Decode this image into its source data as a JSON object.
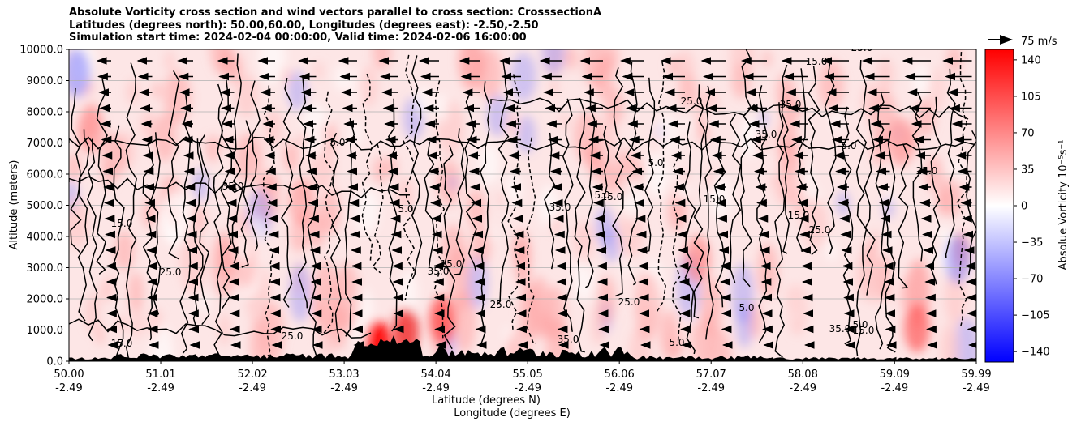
{
  "title_lines": [
    "Absolute Vorticity cross section and wind vectors parallel to cross section: CrosssectionA",
    "Latitudes (degrees north): 50.00,60.00, Longitudes (degrees east): -2.50,-2.50",
    "Simulation start time: 2024-02-04 00:00:00, Valid time: 2024-02-06 16:00:00"
  ],
  "chart_data": {
    "type": "heatmap",
    "xlabel_1": "Latitude (degrees N)",
    "xlabel_2": "Longitude (degrees E)",
    "ylabel": "Altitude (meters)",
    "x_ticks_lat": [
      "50.00",
      "51.01",
      "52.02",
      "53.03",
      "54.04",
      "55.05",
      "56.06",
      "57.07",
      "58.08",
      "59.09",
      "59.99"
    ],
    "x_ticks_lon": [
      "-2.49",
      "-2.49",
      "-2.49",
      "-2.49",
      "-2.49",
      "-2.49",
      "-2.49",
      "-2.49",
      "-2.49",
      "-2.49",
      "-2.49"
    ],
    "y_ticks": [
      "0.0",
      "1000.0",
      "2000.0",
      "3000.0",
      "4000.0",
      "5000.0",
      "6000.0",
      "7000.0",
      "8000.0",
      "9000.0",
      "10000.0"
    ],
    "ylim": [
      0,
      10000
    ],
    "xlim": [
      50.0,
      59.99
    ],
    "grid": "horizontal",
    "colorbar": {
      "label": "Absolue Vorticity 10⁻⁵s⁻¹",
      "ticks": [
        "140",
        "105",
        "70",
        "35",
        "0",
        "−35",
        "−70",
        "−105",
        "−140"
      ],
      "range": [
        -150,
        150
      ],
      "colormap": "bwr"
    },
    "vector_key": {
      "label": "75 m/s"
    },
    "contour_labels": [
      "5.0",
      "15.0",
      "25.0",
      "35.0",
      "-5.0"
    ],
    "colors": {
      "positive": "#ff0000",
      "negative": "#0000ff",
      "neutral": "#ffffff"
    }
  }
}
